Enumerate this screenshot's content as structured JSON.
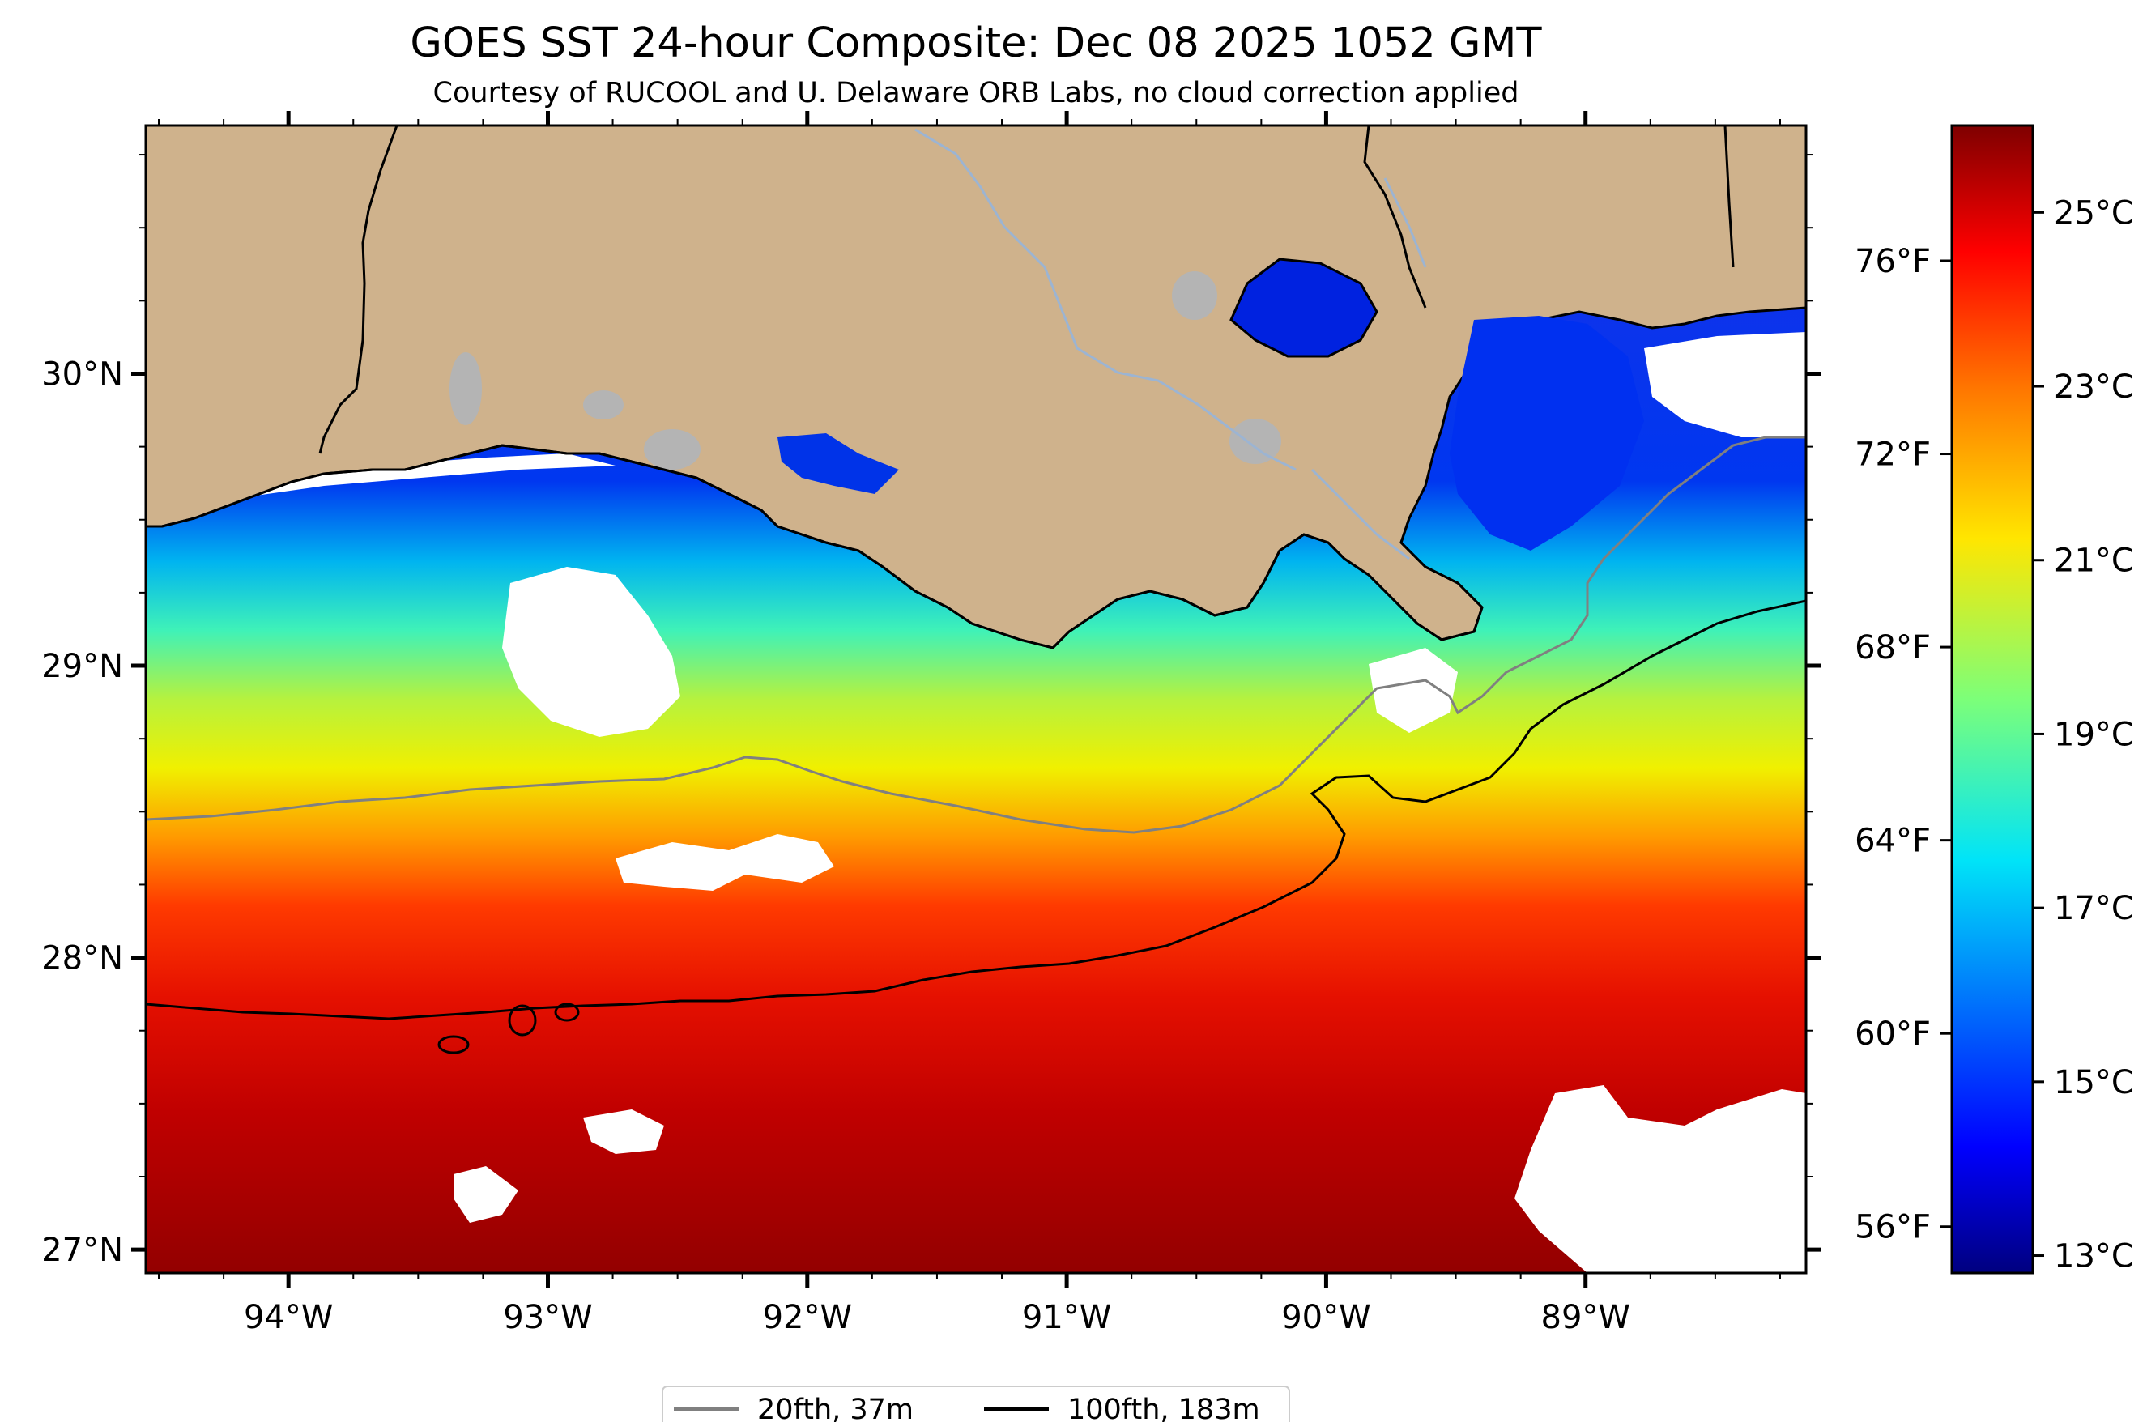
{
  "title": "GOES SST 24-hour Composite: Dec 08 2025 1052 GMT",
  "subtitle": "Courtesy of RUCOOL and U. Delaware ORB Labs, no cloud correction applied",
  "map": {
    "lon_range": [
      -94.55,
      -88.15
    ],
    "lat_range": [
      26.92,
      30.85
    ],
    "lon_ticks": [
      {
        "value": -94,
        "label": "94°W"
      },
      {
        "value": -93,
        "label": "93°W"
      },
      {
        "value": -92,
        "label": "92°W"
      },
      {
        "value": -91,
        "label": "91°W"
      },
      {
        "value": -90,
        "label": "90°W"
      },
      {
        "value": -89,
        "label": "89°W"
      }
    ],
    "lat_ticks": [
      {
        "value": 30,
        "label": "30°N"
      },
      {
        "value": 29,
        "label": "29°N"
      },
      {
        "value": 28,
        "label": "28°N"
      },
      {
        "value": 27,
        "label": "27°N"
      }
    ],
    "colors": {
      "land": "#cfb28c",
      "lake": "#b4b4b4",
      "river": "#9cb4d2",
      "cloud": "#ffffff",
      "coastline": "#000000",
      "isobath_20fth": "#808080",
      "isobath_100fth": "#000000"
    }
  },
  "colorbar": {
    "colormap": "jet",
    "range_c": [
      12.8,
      26.0
    ],
    "celsius_ticks": [
      {
        "value": 13,
        "label": "13°C"
      },
      {
        "value": 15,
        "label": "15°C"
      },
      {
        "value": 17,
        "label": "17°C"
      },
      {
        "value": 19,
        "label": "19°C"
      },
      {
        "value": 21,
        "label": "21°C"
      },
      {
        "value": 23,
        "label": "23°C"
      },
      {
        "value": 25,
        "label": "25°C"
      }
    ],
    "fahrenheit_ticks": [
      {
        "value": 56,
        "label": "56°F"
      },
      {
        "value": 60,
        "label": "60°F"
      },
      {
        "value": 64,
        "label": "64°F"
      },
      {
        "value": 68,
        "label": "68°F"
      },
      {
        "value": 72,
        "label": "72°F"
      },
      {
        "value": 76,
        "label": "76°F"
      }
    ]
  },
  "legend": {
    "placement": "bottom-center",
    "items": [
      {
        "label": "20fth, 37m",
        "color": "#808080"
      },
      {
        "label": "100fth, 183m",
        "color": "#000000"
      }
    ]
  }
}
